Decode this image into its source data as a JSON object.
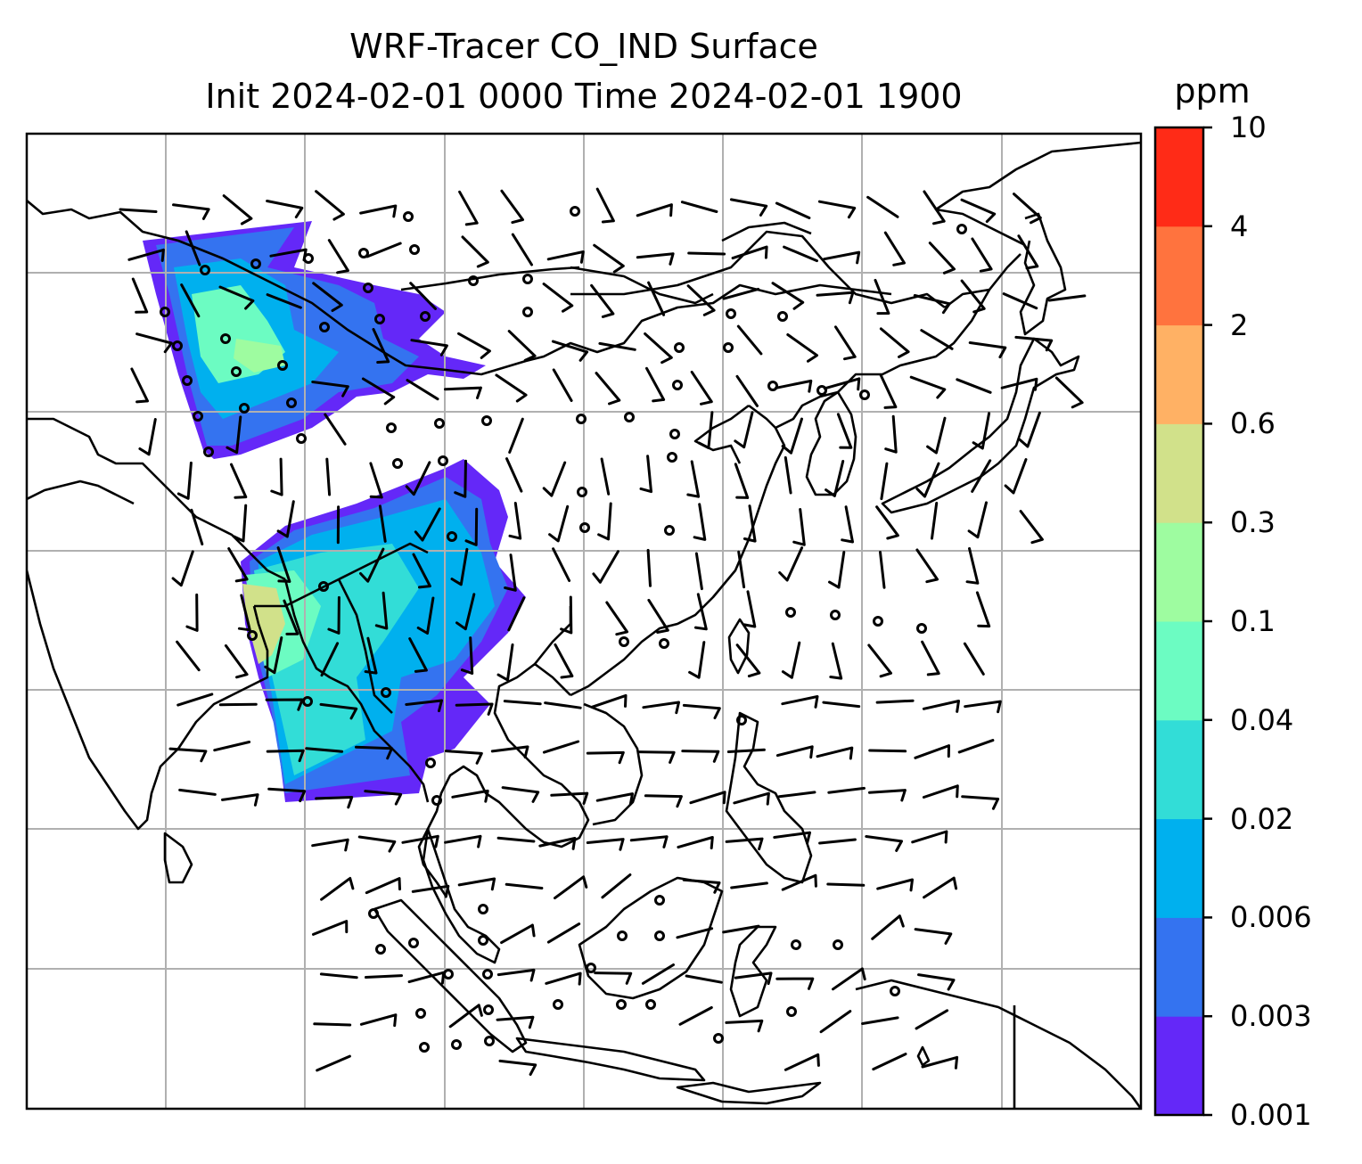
{
  "title": {
    "line1": "WRF-Tracer CO_IND Surface",
    "line2": "Init 2024-02-01 0000 Time 2024-02-01 1900"
  },
  "colorbar": {
    "unit": "ppm",
    "levels": [
      "0.001",
      "0.003",
      "0.006",
      "0.02",
      "0.04",
      "0.1",
      "0.3",
      "0.6",
      "2",
      "4",
      "10"
    ],
    "colors": [
      "#6428f8",
      "#3473f0",
      "#00b0ee",
      "#32ddd7",
      "#6cfcc2",
      "#9efca0",
      "#d1e18a",
      "#ffb164",
      "#ff733e",
      "#ff2b17"
    ]
  },
  "map": {
    "gridlines": true,
    "gridline_color": "#b0b0b0",
    "barb_symbol": "wind-barb",
    "calm_symbol": "calm-circle"
  }
}
